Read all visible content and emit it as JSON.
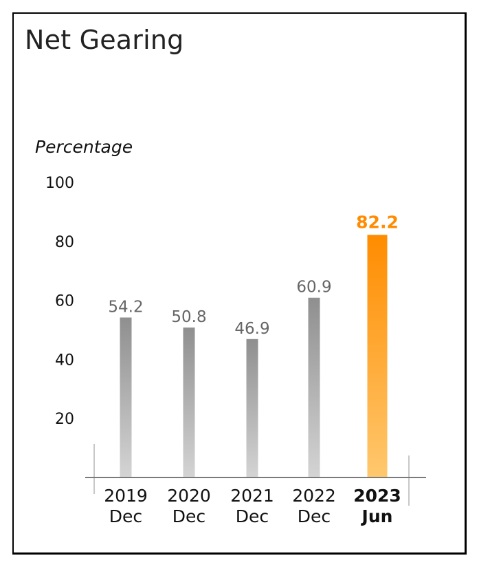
{
  "chart_data": {
    "type": "bar",
    "title": "Net Gearing",
    "xlabel": "",
    "ylabel": "Percentage",
    "ylim": [
      0,
      100
    ],
    "yticks": [
      20,
      40,
      60,
      80,
      100
    ],
    "grid": false,
    "categories": [
      {
        "year": "2019",
        "period": "Dec"
      },
      {
        "year": "2020",
        "period": "Dec"
      },
      {
        "year": "2021",
        "period": "Dec"
      },
      {
        "year": "2022",
        "period": "Dec"
      },
      {
        "year": "2023",
        "period": "Jun"
      }
    ],
    "values": [
      54.2,
      50.8,
      46.9,
      60.9,
      82.2
    ],
    "value_labels": [
      "54.2",
      "50.8",
      "46.9",
      "60.9",
      "82.2"
    ],
    "highlight_index": 4,
    "colors": {
      "bar_top": "#8f8f8f",
      "bar_bottom": "#d4d4d4",
      "highlight_top": "#ff8c00",
      "highlight_bottom": "#ffc86e",
      "highlight_label": "#ff8c00",
      "value_label": "#666666",
      "axis": "#7a7a7a",
      "side_rule": "#c8c8c8"
    }
  }
}
